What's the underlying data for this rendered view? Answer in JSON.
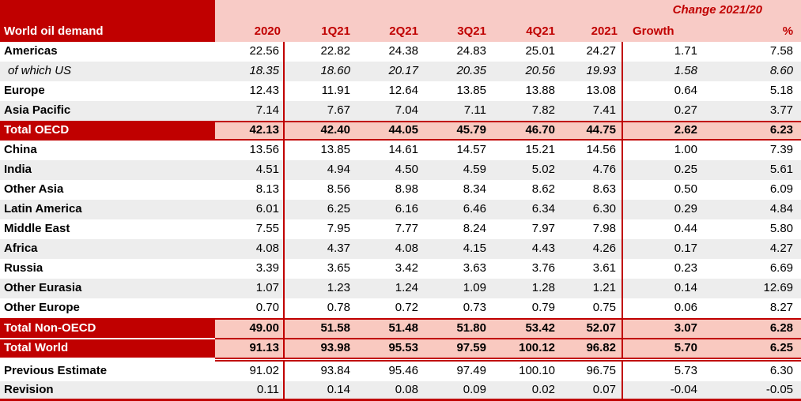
{
  "table": {
    "title": "World oil demand",
    "change_header": "Change 2021/20",
    "columns": [
      "2020",
      "1Q21",
      "2Q21",
      "3Q21",
      "4Q21",
      "2021"
    ],
    "change_columns": [
      "Growth",
      "%"
    ],
    "rows": [
      {
        "label": "Americas",
        "style": "normal",
        "stripe": false,
        "rules": [],
        "values": [
          "22.56",
          "22.82",
          "24.38",
          "24.83",
          "25.01",
          "24.27",
          "1.71",
          "7.58"
        ]
      },
      {
        "label": "of which US",
        "style": "italic",
        "stripe": true,
        "rules": [],
        "values": [
          "18.35",
          "18.60",
          "20.17",
          "20.35",
          "20.56",
          "19.93",
          "1.58",
          "8.60"
        ]
      },
      {
        "label": "Europe",
        "style": "normal",
        "stripe": false,
        "rules": [],
        "values": [
          "12.43",
          "11.91",
          "12.64",
          "13.85",
          "13.88",
          "13.08",
          "0.64",
          "5.18"
        ]
      },
      {
        "label": "Asia Pacific",
        "style": "normal",
        "stripe": true,
        "rules": [],
        "values": [
          "7.14",
          "7.67",
          "7.04",
          "7.11",
          "7.82",
          "7.41",
          "0.27",
          "3.77"
        ]
      },
      {
        "label": "Total OECD",
        "style": "total",
        "stripe": false,
        "rules": [
          "top",
          "bottom"
        ],
        "values": [
          "42.13",
          "42.40",
          "44.05",
          "45.79",
          "46.70",
          "44.75",
          "2.62",
          "6.23"
        ]
      },
      {
        "label": "China",
        "style": "normal",
        "stripe": false,
        "rules": [],
        "values": [
          "13.56",
          "13.85",
          "14.61",
          "14.57",
          "15.21",
          "14.56",
          "1.00",
          "7.39"
        ]
      },
      {
        "label": "India",
        "style": "normal",
        "stripe": true,
        "rules": [],
        "values": [
          "4.51",
          "4.94",
          "4.50",
          "4.59",
          "5.02",
          "4.76",
          "0.25",
          "5.61"
        ]
      },
      {
        "label": "Other Asia",
        "style": "normal",
        "stripe": false,
        "rules": [],
        "values": [
          "8.13",
          "8.56",
          "8.98",
          "8.34",
          "8.62",
          "8.63",
          "0.50",
          "6.09"
        ]
      },
      {
        "label": "Latin America",
        "style": "normal",
        "stripe": true,
        "rules": [],
        "values": [
          "6.01",
          "6.25",
          "6.16",
          "6.46",
          "6.34",
          "6.30",
          "0.29",
          "4.84"
        ]
      },
      {
        "label": "Middle East",
        "style": "normal",
        "stripe": false,
        "rules": [],
        "values": [
          "7.55",
          "7.95",
          "7.77",
          "8.24",
          "7.97",
          "7.98",
          "0.44",
          "5.80"
        ]
      },
      {
        "label": "Africa",
        "style": "normal",
        "stripe": true,
        "rules": [],
        "values": [
          "4.08",
          "4.37",
          "4.08",
          "4.15",
          "4.43",
          "4.26",
          "0.17",
          "4.27"
        ]
      },
      {
        "label": "Russia",
        "style": "normal",
        "stripe": false,
        "rules": [],
        "values": [
          "3.39",
          "3.65",
          "3.42",
          "3.63",
          "3.76",
          "3.61",
          "0.23",
          "6.69"
        ]
      },
      {
        "label": "Other Eurasia",
        "style": "normal",
        "stripe": true,
        "rules": [],
        "values": [
          "1.07",
          "1.23",
          "1.24",
          "1.09",
          "1.28",
          "1.21",
          "0.14",
          "12.69"
        ]
      },
      {
        "label": "Other Europe",
        "style": "normal",
        "stripe": false,
        "rules": [],
        "values": [
          "0.70",
          "0.78",
          "0.72",
          "0.73",
          "0.79",
          "0.75",
          "0.06",
          "8.27"
        ]
      },
      {
        "label": "Total Non-OECD",
        "style": "total",
        "stripe": false,
        "rules": [
          "top"
        ],
        "values": [
          "49.00",
          "51.58",
          "51.48",
          "51.80",
          "53.42",
          "52.07",
          "3.07",
          "6.28"
        ]
      },
      {
        "label": "Total World",
        "style": "total",
        "stripe": false,
        "rules": [
          "top-gap"
        ],
        "double_rule_after": true,
        "values": [
          "91.13",
          "93.98",
          "95.53",
          "97.59",
          "100.12",
          "96.82",
          "5.70",
          "6.25"
        ]
      },
      {
        "label": "Previous Estimate",
        "style": "normal",
        "stripe": false,
        "rules": [],
        "values": [
          "91.02",
          "93.84",
          "95.46",
          "97.49",
          "100.10",
          "96.75",
          "5.73",
          "6.30"
        ]
      },
      {
        "label": "Revision",
        "style": "normal",
        "stripe": true,
        "rules": [
          "bottom-thick"
        ],
        "values": [
          "0.11",
          "0.14",
          "0.08",
          "0.09",
          "0.02",
          "0.07",
          "-0.04",
          "-0.05"
        ]
      }
    ],
    "colors": {
      "accent_dark_red": "#C00000",
      "header_pink": "#F8CBC6",
      "total_row_pink": "#F9C9C0",
      "stripe_gray": "#EDEDED",
      "title_text": "#FFFFFF",
      "value_text": "#000000"
    }
  }
}
